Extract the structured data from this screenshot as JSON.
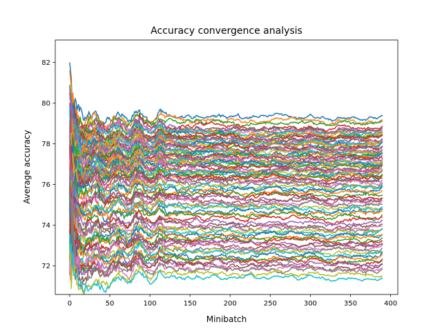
{
  "chart_data": {
    "type": "line",
    "title": "Accuracy convergence analysis",
    "xlabel": "Minibatch",
    "ylabel": "Average accuracy",
    "xlim": [
      -18,
      409
    ],
    "ylim": [
      70.6,
      83.1
    ],
    "xticks": [
      0,
      50,
      100,
      150,
      200,
      250,
      300,
      350,
      400
    ],
    "xtick_labels": [
      "0",
      "50",
      "100",
      "150",
      "200",
      "250",
      "300",
      "350",
      "400"
    ],
    "yticks": [
      72,
      74,
      76,
      78,
      80,
      82
    ],
    "ytick_labels": [
      "72",
      "74",
      "76",
      "78",
      "80",
      "82"
    ],
    "grid": false,
    "legend": "none",
    "n_points": 391,
    "x_range": [
      0,
      390
    ],
    "series_count": 100,
    "final_values": [
      79.3,
      79.1,
      79.0,
      78.8,
      78.7,
      78.7,
      78.6,
      78.6,
      78.5,
      78.5,
      78.4,
      78.4,
      78.3,
      78.3,
      78.2,
      78.2,
      78.1,
      78.1,
      78.0,
      78.0,
      77.9,
      77.9,
      77.8,
      77.8,
      77.8,
      77.7,
      77.7,
      77.6,
      77.6,
      77.5,
      77.5,
      77.4,
      77.4,
      77.3,
      77.3,
      77.2,
      77.2,
      77.1,
      77.1,
      77.0,
      77.0,
      76.9,
      76.9,
      76.8,
      76.8,
      76.7,
      76.7,
      76.6,
      76.6,
      76.5,
      76.5,
      76.4,
      76.4,
      76.3,
      76.2,
      76.2,
      76.1,
      76.0,
      75.9,
      75.8,
      75.7,
      75.6,
      75.5,
      75.4,
      75.3,
      75.2,
      75.1,
      75.0,
      74.9,
      74.8,
      74.7,
      74.6,
      74.5,
      74.3,
      74.1,
      74.0,
      73.9,
      73.8,
      73.7,
      73.6,
      73.5,
      73.4,
      73.3,
      73.2,
      73.1,
      73.0,
      72.9,
      72.8,
      72.7,
      72.6,
      72.5,
      72.4,
      72.3,
      72.2,
      72.1,
      72.0,
      71.9,
      71.8,
      71.6,
      71.4
    ],
    "early_peaks": [
      82.0,
      81.6,
      80.9,
      80.5,
      79.9,
      79.5
    ],
    "colors": [
      "#1f77b4",
      "#ff7f0e",
      "#2ca02c",
      "#d62728",
      "#9467bd",
      "#8c564b",
      "#e377c2",
      "#7f7f7f",
      "#bcbd22",
      "#17becf"
    ]
  }
}
